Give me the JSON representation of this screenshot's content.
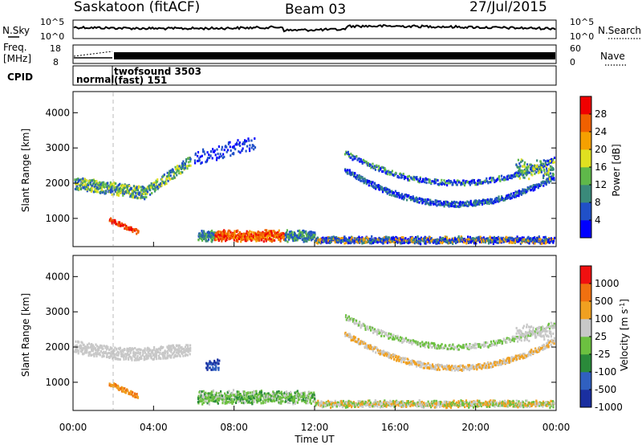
{
  "header": {
    "station": "Saskatoon (fitACF)",
    "beam": "Beam 03",
    "date": "27/Jul/2015"
  },
  "noise_panel": {
    "left_label": "N.Sky",
    "right_label": "N.Search",
    "left_ticks": [
      "10^5",
      "10^0"
    ],
    "right_ticks": [
      "10^5",
      "10^0"
    ]
  },
  "freq_panel": {
    "left_label_line1": "Freq.",
    "left_label_line2": "[MHz]",
    "right_label": "Nave",
    "left_ticks": [
      "18",
      "8"
    ],
    "right_ticks": [
      "60",
      "0"
    ]
  },
  "cpid_panel": {
    "label": "CPID",
    "mode1": "normal",
    "mode2_line1": "twofsound 3503",
    "mode2_line2": "(fast) 151"
  },
  "colors": {
    "power_scale": [
      "#0000ff",
      "#2050c8",
      "#3a8a7a",
      "#5fb84a",
      "#e0e020",
      "#f5a000",
      "#f06000",
      "#f00000"
    ],
    "velocity_scale": [
      "#1a2fa0",
      "#3060c0",
      "#2a8a3a",
      "#6cc040",
      "#c8c8c8",
      "#f0a020",
      "#f07010",
      "#f01010"
    ]
  },
  "chart_data": [
    {
      "type": "heatmap",
      "name": "power",
      "ylabel": "Slant Range [km]",
      "yticks": [
        "1000",
        "2000",
        "3000",
        "4000"
      ],
      "ylim": [
        200,
        4600
      ],
      "xlim_hours": [
        0,
        24
      ],
      "colorbar_label": "Power [dB]",
      "colorbar_ticks": [
        "4",
        "8",
        "12",
        "16",
        "20",
        "24",
        "28"
      ],
      "colorbar_range": [
        0,
        32
      ]
    },
    {
      "type": "heatmap",
      "name": "velocity",
      "ylabel": "Slant Range [km]",
      "yticks": [
        "1000",
        "2000",
        "3000",
        "4000"
      ],
      "ylim": [
        200,
        4600
      ],
      "xlim_hours": [
        0,
        24
      ],
      "colorbar_label": "Velocity [m s^-1]",
      "colorbar_ticks": [
        "1000",
        "500",
        "100",
        "25",
        "-25",
        "-100",
        "-500",
        "-1000"
      ]
    }
  ],
  "xaxis": {
    "ticks": [
      "00:00",
      "04:00",
      "08:00",
      "12:00",
      "16:00",
      "20:00",
      "00:00"
    ],
    "label": "Time UT"
  }
}
